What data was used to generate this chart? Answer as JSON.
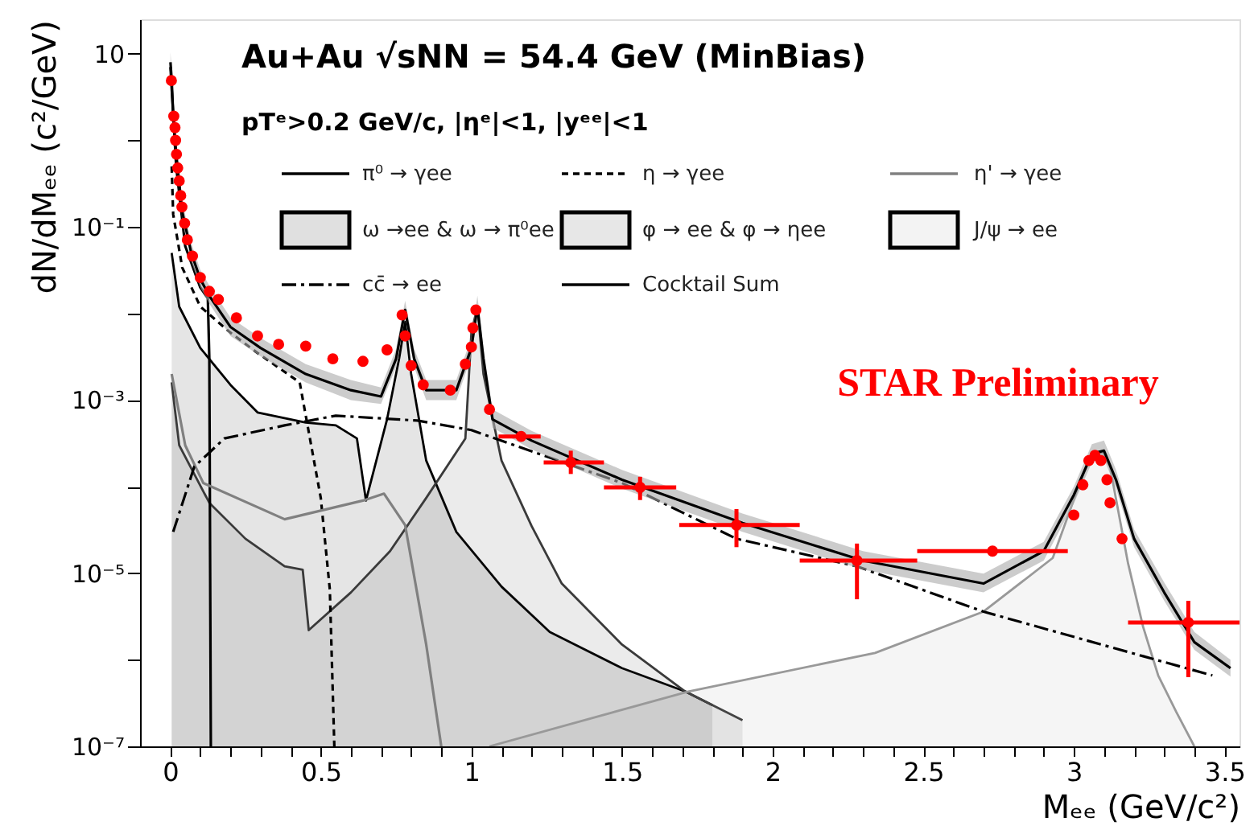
{
  "chart_data": {
    "type": "line",
    "xlabel": "Mₑₑ (GeV/c²)",
    "ylabel": "dN/dMₑₑ (c²/GeV)",
    "annotations": [
      "Au+Au √sNN = 54.4 GeV (MinBias)",
      "pTᵉ>0.2 GeV/c, |ηᵉ|<1, |yᵉᵉ|<1",
      "STAR Preliminary"
    ],
    "xlim": [
      -0.1,
      3.55
    ],
    "ylim": [
      1e-07,
      25
    ],
    "log": true,
    "grid": false,
    "legend": "top",
    "xticks": [
      0,
      {
        "value": 0.1,
        "label": null
      },
      {
        "value": 0.2,
        "label": null
      },
      {
        "value": 0.3,
        "label": null
      },
      {
        "value": 0.4,
        "label": null
      },
      0.5,
      {
        "value": 0.6,
        "label": null
      },
      {
        "value": 0.7,
        "label": null
      },
      {
        "value": 0.8,
        "label": null
      },
      {
        "value": 0.9,
        "label": null
      },
      1,
      {
        "value": 1.1,
        "label": null
      },
      {
        "value": 1.2,
        "label": null
      },
      {
        "value": 1.3,
        "label": null
      },
      {
        "value": 1.4,
        "label": null
      },
      1.5,
      {
        "value": 1.6,
        "label": null
      },
      {
        "value": 1.7,
        "label": null
      },
      {
        "value": 1.8,
        "label": null
      },
      {
        "value": 1.9,
        "label": null
      },
      2,
      {
        "value": 2.1,
        "label": null
      },
      {
        "value": 2.2,
        "label": null
      },
      {
        "value": 2.3,
        "label": null
      },
      {
        "value": 2.4,
        "label": null
      },
      2.5,
      {
        "value": 2.6,
        "label": null
      },
      {
        "value": 2.7,
        "label": null
      },
      {
        "value": 2.8,
        "label": null
      },
      {
        "value": 2.9,
        "label": null
      },
      3,
      {
        "value": 3.1,
        "label": null
      },
      {
        "value": 3.2,
        "label": null
      },
      {
        "value": 3.3,
        "label": null
      },
      {
        "value": 3.4,
        "label": null
      },
      3.5
    ],
    "yticks": [
      {
        "value": 1e-07,
        "label": "10⁻⁷"
      },
      {
        "value": 1e-06,
        "label": null
      },
      {
        "value": 1e-05,
        "label": "10⁻⁵"
      },
      {
        "value": 0.0001,
        "label": null
      },
      {
        "value": 0.001,
        "label": "10⁻³"
      },
      {
        "value": 0.01,
        "label": null
      },
      {
        "value": 0.1,
        "label": "10⁻¹"
      },
      {
        "value": 1,
        "label": null
      },
      10
    ],
    "series": [
      {
        "name": "π⁰ → γee",
        "color": "#000000",
        "line_style": "solid",
        "x": [
          0.001,
          0.02,
          0.05,
          0.1,
          0.125,
          0.13,
          0.135
        ],
        "values": [
          7,
          0.5,
          0.06,
          0.02,
          0.015,
          0.003,
          1e-07
        ]
      },
      {
        "name": "η → γee",
        "color": "#000000",
        "line_style": "dotted",
        "x": [
          0.005,
          0.01,
          0.04,
          0.1,
          0.2,
          0.29,
          0.43,
          0.5,
          0.53,
          0.545
        ],
        "values": [
          0.5,
          0.14,
          0.034,
          0.012,
          0.006,
          0.0035,
          0.0016,
          7.4e-05,
          6.5e-06,
          1e-07
        ]
      },
      {
        "name": "η' → γee",
        "color": "#808080",
        "line_style": "solid",
        "x": [
          0.005,
          0.05,
          0.11,
          0.38,
          0.64,
          0.71,
          0.78,
          0.85,
          0.9
        ],
        "values": [
          0.002,
          0.0003,
          0.00011,
          4.2e-05,
          6.9e-05,
          8.3e-05,
          3.6e-05,
          1.5e-06,
          1e-07
        ]
      },
      {
        "name": "ω →ee & ω → π⁰ee",
        "type": "area",
        "color": "#000000",
        "x": [
          0.005,
          0.03,
          0.1,
          0.2,
          0.29,
          0.45,
          0.55,
          0.62,
          0.65,
          0.72,
          0.76,
          0.78,
          0.8,
          0.85,
          0.95,
          1.1,
          1.26,
          1.5,
          1.71,
          1.8
        ],
        "values": [
          0.05,
          0.012,
          0.004,
          0.0015,
          0.00072,
          0.00055,
          0.00051,
          0.00036,
          6.9e-05,
          0.0006,
          0.003,
          0.008,
          0.002,
          0.0002,
          3e-05,
          7e-06,
          2.1e-06,
          8e-07,
          4.3e-07,
          3e-07
        ]
      },
      {
        "name": "φ → ee & φ → ηee",
        "type": "area",
        "color": "#3a3a3a",
        "x": [
          0.005,
          0.03,
          0.13,
          0.25,
          0.38,
          0.44,
          0.46,
          0.6,
          0.73,
          0.85,
          0.98,
          1.0,
          1.02,
          1.04,
          1.1,
          1.2,
          1.3,
          1.5,
          1.71,
          1.9
        ],
        "values": [
          0.0016,
          0.0003,
          6.5e-05,
          2.5e-05,
          1.2e-05,
          1.1e-05,
          2.2e-06,
          6e-06,
          1.8e-05,
          7.4e-05,
          0.00036,
          0.006,
          0.012,
          0.002,
          0.0002,
          3.5e-05,
          7.6e-06,
          1.5e-06,
          4.3e-07,
          2e-07
        ]
      },
      {
        "name": "J/ψ → ee",
        "type": "area",
        "color": "#999999",
        "x": [
          1.06,
          1.72,
          2.34,
          2.7,
          2.93,
          3.02,
          3.06,
          3.1,
          3.12,
          3.18,
          3.23,
          3.28,
          3.34,
          3.4
        ],
        "values": [
          1e-07,
          4.3e-07,
          1.2e-06,
          3.6e-06,
          1.5e-05,
          0.00011,
          0.00025,
          0.00024,
          0.00017,
          1.3e-05,
          2.4e-06,
          6.6e-07,
          2.5e-07,
          1e-07
        ]
      },
      {
        "name": "cc̄ → ee",
        "color": "#000000",
        "line_style": "dashed",
        "x": [
          0.01,
          0.08,
          0.18,
          0.38,
          0.55,
          0.82,
          1.0,
          1.5,
          1.88,
          2.28,
          2.7,
          3.23,
          3.46
        ],
        "values": [
          3e-05,
          0.00017,
          0.00036,
          0.00051,
          0.00066,
          0.00058,
          0.00045,
          0.00011,
          2.5e-05,
          1.2e-05,
          3.6e-06,
          1.1e-06,
          6.6e-07
        ]
      },
      {
        "name": "Cocktail Sum",
        "color": "#000000",
        "line_style": "solid",
        "x": [
          0.001,
          0.005,
          0.01,
          0.02,
          0.04,
          0.07,
          0.1,
          0.13,
          0.2,
          0.3,
          0.45,
          0.6,
          0.7,
          0.75,
          0.78,
          0.81,
          0.85,
          0.95,
          1.0,
          1.02,
          1.04,
          1.07,
          1.2,
          1.5,
          1.9,
          2.3,
          2.7,
          2.9,
          3.0,
          3.06,
          3.1,
          3.14,
          3.2,
          3.3,
          3.4,
          3.52
        ],
        "values": [
          8,
          5,
          2,
          0.7,
          0.15,
          0.05,
          0.025,
          0.016,
          0.007,
          0.004,
          0.002,
          0.0013,
          0.0011,
          0.003,
          0.011,
          0.003,
          0.0013,
          0.0013,
          0.004,
          0.012,
          0.003,
          0.0006,
          0.00034,
          0.00012,
          3.8e-05,
          1.4e-05,
          7.6e-06,
          1.8e-05,
          8e-05,
          0.00024,
          0.00026,
          0.00012,
          2.5e-05,
          6e-06,
          1.6e-06,
          8e-07
        ],
        "lower": [
          6.4,
          4,
          1.6,
          0.55,
          0.12,
          0.04,
          0.02,
          0.013,
          0.0055,
          0.0032,
          0.0016,
          0.001,
          0.0009,
          0.0024,
          0.009,
          0.0024,
          0.001,
          0.001,
          0.0032,
          0.0095,
          0.0024,
          0.00048,
          0.00027,
          9.5e-05,
          3e-05,
          1.1e-05,
          6e-06,
          1.4e-05,
          6.4e-05,
          0.00019,
          0.00021,
          9.5e-05,
          2e-05,
          4.8e-06,
          1.3e-06,
          6.4e-07
        ],
        "upper": [
          10.4,
          6.5,
          2.6,
          0.9,
          0.2,
          0.065,
          0.032,
          0.021,
          0.009,
          0.0052,
          0.0026,
          0.0017,
          0.0014,
          0.0039,
          0.014,
          0.0039,
          0.0017,
          0.0017,
          0.0052,
          0.016,
          0.0039,
          0.00078,
          0.00044,
          0.000156,
          4.9e-05,
          1.8e-05,
          9.9e-06,
          2.3e-05,
          0.0001,
          0.00031,
          0.00034,
          0.000156,
          3.2e-05,
          7.8e-06,
          2.1e-06,
          1e-06
        ]
      },
      {
        "type": "scatter",
        "color": "#ff0000",
        "marker": "circle",
        "x": [
          0.004,
          0.012,
          0.016,
          0.018,
          0.021,
          0.025,
          0.03,
          0.035,
          0.039,
          0.048,
          0.057,
          0.074,
          0.1,
          0.13,
          0.16,
          0.22,
          0.29,
          0.36,
          0.45,
          0.54,
          0.64,
          0.72,
          0.77,
          0.78,
          0.8,
          0.84,
          0.93,
          0.98,
          1.0,
          1.005,
          1.015,
          1.06,
          1.165,
          1.33,
          1.56,
          1.88,
          2.28,
          2.73,
          3.0,
          3.03,
          3.05,
          3.07,
          3.09,
          3.11,
          3.12,
          3.16,
          3.38
        ],
        "values": [
          4.9,
          1.9,
          1.4,
          1.0,
          0.69,
          0.48,
          0.34,
          0.23,
          0.17,
          0.11,
          0.071,
          0.046,
          0.026,
          0.018,
          0.0145,
          0.0089,
          0.0055,
          0.0044,
          0.0042,
          0.003,
          0.0028,
          0.0038,
          0.0096,
          0.0055,
          0.0025,
          0.0015,
          0.0013,
          0.0026,
          0.0041,
          0.0068,
          0.011,
          0.00078,
          0.00038,
          0.00019,
          9.8e-05,
          3.6e-05,
          1.4e-05,
          1.8e-05,
          4.7e-05,
          0.000105,
          0.0002,
          0.00023,
          0.0002,
          0.00012,
          6.5e-05,
          2.5e-05,
          2.7e-06
        ],
        "errors": [
          null,
          null,
          null,
          null,
          null,
          null,
          null,
          null,
          null,
          null,
          null,
          null,
          null,
          null,
          null,
          null,
          null,
          null,
          null,
          null,
          null,
          null,
          null,
          null,
          null,
          null,
          null,
          null,
          null,
          null,
          null,
          null,
          null,
          [
            0.00014,
            0.00026
          ],
          [
            7e-05,
            0.00013
          ],
          [
            2e-05,
            5.5e-05
          ],
          [
            5e-06,
            2.2e-05
          ],
          null,
          null,
          null,
          null,
          null,
          null,
          null,
          null,
          null,
          [
            6.3e-07,
            4.8e-06
          ]
        ],
        "xerrors": [
          null,
          null,
          null,
          null,
          null,
          null,
          null,
          null,
          null,
          null,
          null,
          null,
          null,
          null,
          null,
          null,
          null,
          null,
          null,
          null,
          null,
          null,
          null,
          null,
          null,
          null,
          null,
          null,
          null,
          null,
          null,
          null,
          [
            1.09,
            1.23
          ],
          [
            1.24,
            1.44
          ],
          [
            1.44,
            1.68
          ],
          [
            1.69,
            2.09
          ],
          [
            2.09,
            2.48
          ],
          [
            2.48,
            2.98
          ],
          null,
          null,
          null,
          null,
          null,
          null,
          null,
          null,
          [
            3.18,
            3.55
          ]
        ]
      }
    ]
  }
}
